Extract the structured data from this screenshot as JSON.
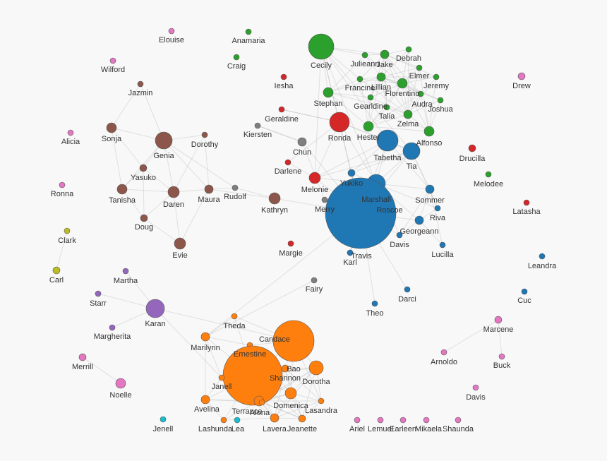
{
  "nodes": [
    {
      "label": "Elouise",
      "color": "#e377c2"
    },
    {
      "label": "Wilford",
      "color": "#e377c2"
    },
    {
      "label": "Jazmin",
      "color": "#8c564b"
    },
    {
      "label": "Alicia",
      "color": "#e377c2"
    },
    {
      "label": "Sonja",
      "color": "#8c564b"
    },
    {
      "label": "Genia",
      "color": "#8c564b"
    },
    {
      "label": "Dorothy",
      "color": "#8c564b"
    },
    {
      "label": "Yasuko",
      "color": "#8c564b"
    },
    {
      "label": "Tanisha",
      "color": "#8c564b"
    },
    {
      "label": "Daren",
      "color": "#8c564b"
    },
    {
      "label": "Maura",
      "color": "#8c564b"
    },
    {
      "label": "Doug",
      "color": "#8c564b"
    },
    {
      "label": "Evie",
      "color": "#8c564b"
    },
    {
      "label": "Ronna",
      "color": "#e377c2"
    },
    {
      "label": "Clark",
      "color": "#bcbd22"
    },
    {
      "label": "Carl",
      "color": "#bcbd22"
    },
    {
      "label": "Anamaria",
      "color": "#2ca02c"
    },
    {
      "label": "Craig",
      "color": "#2ca02c"
    },
    {
      "label": "Cecily",
      "color": "#2ca02c"
    },
    {
      "label": "Iesha",
      "color": "#d62728"
    },
    {
      "label": "Stephan",
      "color": "#2ca02c"
    },
    {
      "label": "Geraldine",
      "color": "#d62728"
    },
    {
      "label": "Kiersten",
      "color": "#7f7f7f"
    },
    {
      "label": "Ronda",
      "color": "#d62728"
    },
    {
      "label": "Chun",
      "color": "#7f7f7f"
    },
    {
      "label": "Darlene",
      "color": "#d62728"
    },
    {
      "label": "Rudolf",
      "color": "#7f7f7f"
    },
    {
      "label": "Kathryn",
      "color": "#8c564b"
    },
    {
      "label": "Melonie",
      "color": "#d62728"
    },
    {
      "label": "Merry",
      "color": "#7f7f7f"
    },
    {
      "label": "Margie",
      "color": "#d62728"
    },
    {
      "label": "Fairy",
      "color": "#7f7f7f"
    },
    {
      "label": "Julieann",
      "color": "#2ca02c"
    },
    {
      "label": "Jake",
      "color": "#2ca02c"
    },
    {
      "label": "Debrah",
      "color": "#2ca02c"
    },
    {
      "label": "Elmer",
      "color": "#2ca02c"
    },
    {
      "label": "Lillian",
      "color": "#2ca02c"
    },
    {
      "label": "Francine",
      "color": "#2ca02c"
    },
    {
      "label": "Jeremy",
      "color": "#2ca02c"
    },
    {
      "label": "Florentino",
      "color": "#2ca02c"
    },
    {
      "label": "Gearldine",
      "color": "#2ca02c"
    },
    {
      "label": "Audra",
      "color": "#2ca02c"
    },
    {
      "label": "Talia",
      "color": "#2ca02c"
    },
    {
      "label": "Joshua",
      "color": "#2ca02c"
    },
    {
      "label": "Zelma",
      "color": "#2ca02c"
    },
    {
      "label": "Hester",
      "color": "#2ca02c"
    },
    {
      "label": "Alfonso",
      "color": "#2ca02c"
    },
    {
      "label": "Tabetha",
      "color": "#1f77b4"
    },
    {
      "label": "Tia",
      "color": "#1f77b4"
    },
    {
      "label": "Drucilla",
      "color": "#d62728"
    },
    {
      "label": "Melodee",
      "color": "#2ca02c"
    },
    {
      "label": "Latasha",
      "color": "#d62728"
    },
    {
      "label": "Drew",
      "color": "#e377c2"
    },
    {
      "label": "Yukiko",
      "color": "#1f77b4"
    },
    {
      "label": "Marshall",
      "color": "#1f77b4"
    },
    {
      "label": "Sommer",
      "color": "#1f77b4"
    },
    {
      "label": "Roscoe",
      "color": "#1f77b4"
    },
    {
      "label": "Riva",
      "color": "#1f77b4"
    },
    {
      "label": "Georgeann",
      "color": "#1f77b4"
    },
    {
      "label": "Davis",
      "color": "#1f77b4"
    },
    {
      "label": "Lucilla",
      "color": "#1f77b4"
    },
    {
      "label": "Travis",
      "color": "#1f77b4"
    },
    {
      "label": "Karl",
      "color": "#1f77b4"
    },
    {
      "label": "Darci",
      "color": "#1f77b4"
    },
    {
      "label": "Theo",
      "color": "#1f77b4"
    },
    {
      "label": "Leandra",
      "color": "#1f77b4"
    },
    {
      "label": "Cuc",
      "color": "#1f77b4"
    },
    {
      "label": "Marcene",
      "color": "#e377c2"
    },
    {
      "label": "Arnoldo",
      "color": "#e377c2"
    },
    {
      "label": "Buck",
      "color": "#e377c2"
    },
    {
      "label": "Davis",
      "color": "#e377c2"
    },
    {
      "label": "Martha",
      "color": "#9467bd"
    },
    {
      "label": "Starr",
      "color": "#9467bd"
    },
    {
      "label": "Karan",
      "color": "#9467bd"
    },
    {
      "label": "Margherita",
      "color": "#9467bd"
    },
    {
      "label": "Merrill",
      "color": "#e377c2"
    },
    {
      "label": "Noelle",
      "color": "#e377c2"
    },
    {
      "label": "Theda",
      "color": "#ff7f0e"
    },
    {
      "label": "Candace",
      "color": "#ff7f0e"
    },
    {
      "label": "Marilynn",
      "color": "#ff7f0e"
    },
    {
      "label": "Ernestine",
      "color": "#ff7f0e"
    },
    {
      "label": "Bao",
      "color": "#ff7f0e"
    },
    {
      "label": "Dorotha",
      "color": "#ff7f0e"
    },
    {
      "label": "Janell",
      "color": "#ff7f0e"
    },
    {
      "label": "Shannon",
      "color": "#ff7f0e"
    },
    {
      "label": "Avelina",
      "color": "#ff7f0e"
    },
    {
      "label": "Domenica",
      "color": "#ff7f0e"
    },
    {
      "label": "Terrance",
      "color": "#ff7f0e"
    },
    {
      "label": "Alona",
      "color": "#ff7f0e"
    },
    {
      "label": "Lasandra",
      "color": "#ff7f0e"
    },
    {
      "label": "Lavera",
      "color": "#ff7f0e"
    },
    {
      "label": "Jeanette",
      "color": "#ff7f0e"
    },
    {
      "label": "Lashunda",
      "color": "#ff7f0e"
    },
    {
      "label": "Lea",
      "color": "#17becf"
    },
    {
      "label": "Jenell",
      "color": "#17becf"
    },
    {
      "label": "Ariel",
      "color": "#e377c2"
    },
    {
      "label": "Lemuel",
      "color": "#e377c2"
    },
    {
      "label": "Earleen",
      "color": "#e377c2"
    },
    {
      "label": "Mikaela",
      "color": "#e377c2"
    },
    {
      "label": "Shaunda",
      "color": "#e377c2"
    }
  ]
}
